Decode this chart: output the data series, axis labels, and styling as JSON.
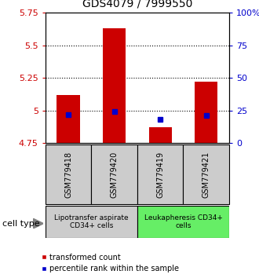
{
  "title": "GDS4079 / 7999550",
  "samples": [
    "GSM779418",
    "GSM779420",
    "GSM779419",
    "GSM779421"
  ],
  "bar_values": [
    5.12,
    5.63,
    4.87,
    5.22
  ],
  "bar_base": 4.75,
  "percentile_values": [
    4.97,
    4.995,
    4.93,
    4.96
  ],
  "ylim": [
    4.75,
    5.75
  ],
  "yticks": [
    4.75,
    5.0,
    5.25,
    5.5,
    5.75
  ],
  "ytick_labels": [
    "4.75",
    "5",
    "5.25",
    "5.5",
    "5.75"
  ],
  "right_yticks": [
    0,
    25,
    50,
    75,
    100
  ],
  "right_ytick_labels": [
    "0",
    "25",
    "50",
    "75",
    "100%"
  ],
  "bar_color": "#cc0000",
  "percentile_color": "#0000cc",
  "left_axis_color": "#cc0000",
  "right_axis_color": "#0000cc",
  "groups": [
    {
      "label": "Lipotransfer aspirate\nCD34+ cells",
      "samples": [
        0,
        1
      ],
      "color": "#cccccc"
    },
    {
      "label": "Leukapheresis CD34+\ncells",
      "samples": [
        2,
        3
      ],
      "color": "#66ee66"
    }
  ],
  "cell_type_label": "cell type",
  "legend_items": [
    {
      "color": "#cc0000",
      "label": "transformed count"
    },
    {
      "color": "#0000cc",
      "label": "percentile rank within the sample"
    }
  ],
  "grid_yticks": [
    5.0,
    5.25,
    5.5
  ],
  "bar_width": 0.5
}
